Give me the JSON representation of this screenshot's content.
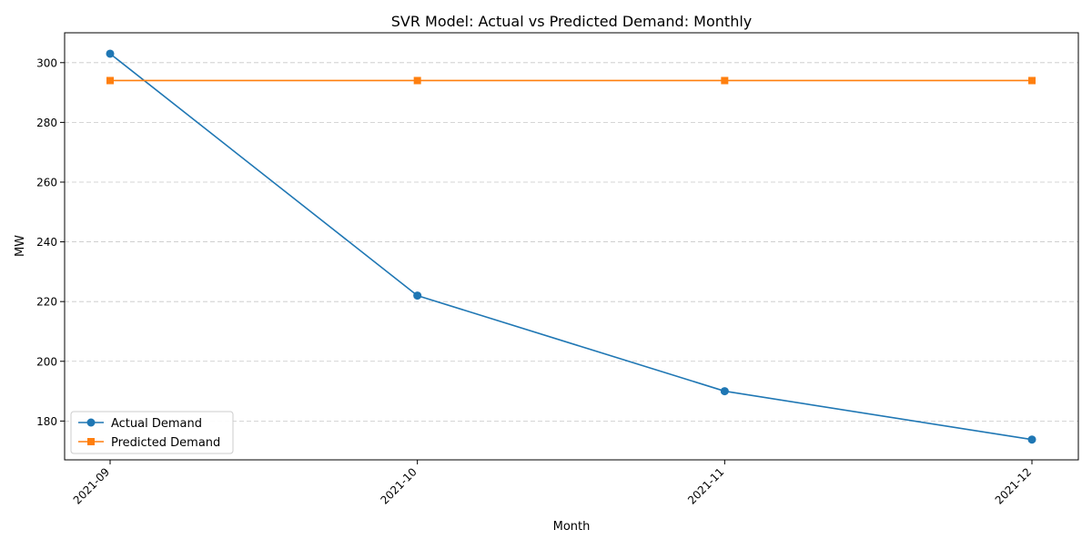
{
  "chart_data": {
    "type": "line",
    "title": "SVR Model: Actual vs Predicted Demand: Monthly",
    "xlabel": "Month",
    "ylabel": "MW",
    "categories": [
      "2021-09",
      "2021-10",
      "2021-11",
      "2021-12"
    ],
    "series": [
      {
        "name": "Actual Demand",
        "values": [
          303,
          222,
          190,
          173.8
        ],
        "color": "#1f77b4",
        "marker": "circle"
      },
      {
        "name": "Predicted Demand",
        "values": [
          294,
          294,
          294,
          294
        ],
        "color": "#ff7f0e",
        "marker": "square"
      }
    ],
    "ylim": [
      167,
      310
    ],
    "yticks": [
      180,
      200,
      220,
      240,
      260,
      280,
      300
    ],
    "grid": "y-dashed",
    "legend_position": "lower-left"
  }
}
